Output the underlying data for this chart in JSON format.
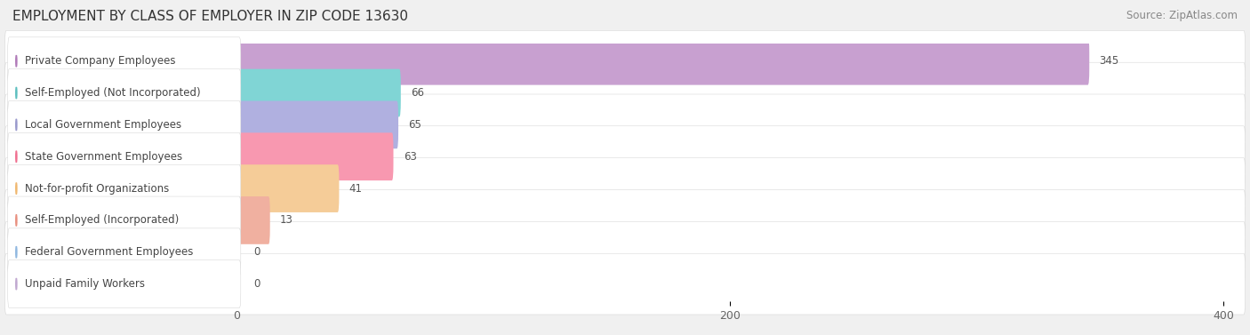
{
  "title": "EMPLOYMENT BY CLASS OF EMPLOYER IN ZIP CODE 13630",
  "source": "Source: ZipAtlas.com",
  "categories": [
    "Private Company Employees",
    "Self-Employed (Not Incorporated)",
    "Local Government Employees",
    "State Government Employees",
    "Not-for-profit Organizations",
    "Self-Employed (Incorporated)",
    "Federal Government Employees",
    "Unpaid Family Workers"
  ],
  "values": [
    345,
    66,
    65,
    63,
    41,
    13,
    0,
    0
  ],
  "bar_colors": [
    "#b07ab8",
    "#5dbfbf",
    "#9999cc",
    "#f07090",
    "#f0b870",
    "#e89080",
    "#90b8e0",
    "#c0a8d0"
  ],
  "bar_colors_light": [
    "#c8a0d0",
    "#80d5d5",
    "#b0b0e0",
    "#f898b0",
    "#f5cc98",
    "#f0b0a0",
    "#b0ccee",
    "#d0bce0"
  ],
  "label_bg": "#ffffff",
  "xlim_data": 400,
  "xlim_display": 430,
  "xticks": [
    0,
    200,
    400
  ],
  "background_color": "#f0f0f0",
  "row_bg_color": "#ffffff",
  "title_fontsize": 11,
  "source_fontsize": 8.5,
  "label_fontsize": 8.5,
  "value_fontsize": 8.5,
  "tick_fontsize": 9
}
